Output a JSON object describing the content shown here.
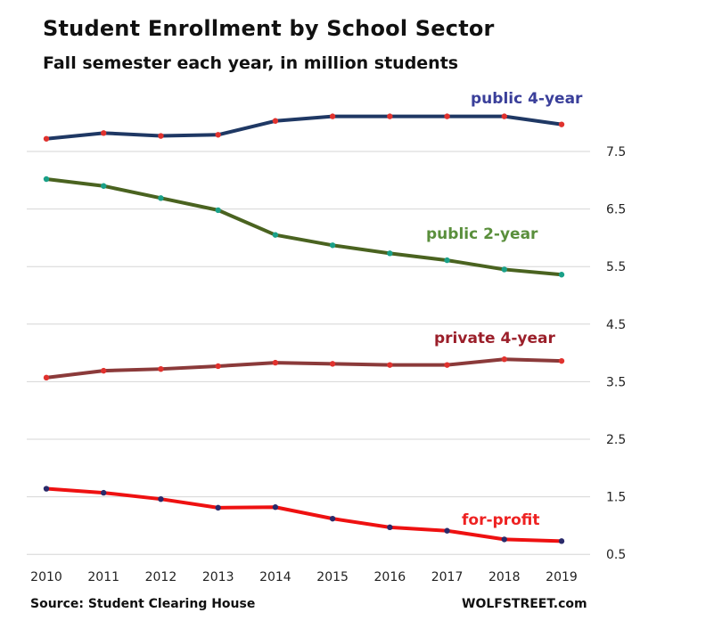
{
  "title": "Student Enrollment by School Sector",
  "subtitle": "Fall semester each year, in million students",
  "source": "Source: Student Clearing House",
  "brand": "WOLFSTREET.com",
  "chart_data": {
    "type": "line",
    "title": "Student Enrollment by School Sector",
    "subtitle": "Fall semester each year, in million students",
    "x": [
      "2010",
      "2011",
      "2012",
      "2013",
      "2014",
      "2015",
      "2016",
      "2017",
      "2018",
      "2019"
    ],
    "y_ticks": [
      "0.5",
      "1.5",
      "2.5",
      "3.5",
      "4.5",
      "5.5",
      "6.5",
      "7.5"
    ],
    "ylim": [
      0.5,
      8.4
    ],
    "grid": true,
    "y_axis_side": "right",
    "series": [
      {
        "name": "public 4-year",
        "color": "#1f3864",
        "label_color": "#3a3f9a",
        "marker_color": "#e0322e",
        "values": [
          7.72,
          7.82,
          7.77,
          7.79,
          8.03,
          8.11,
          8.11,
          8.11,
          8.11,
          7.97
        ]
      },
      {
        "name": "public 2-year",
        "color": "#4a6320",
        "label_color": "#5a8f3c",
        "marker_color": "#1aa088",
        "values": [
          7.02,
          6.9,
          6.69,
          6.48,
          6.05,
          5.87,
          5.73,
          5.61,
          5.45,
          5.36
        ]
      },
      {
        "name": "private 4-year",
        "color": "#8b3a3a",
        "label_color": "#9b1f2a",
        "marker_color": "#e0322e",
        "values": [
          3.57,
          3.69,
          3.72,
          3.77,
          3.83,
          3.81,
          3.79,
          3.79,
          3.89,
          3.86
        ]
      },
      {
        "name": "for-profit",
        "color": "#ee1111",
        "label_color": "#ee2222",
        "marker_color": "#2a2a6a",
        "values": [
          1.64,
          1.57,
          1.46,
          1.31,
          1.32,
          1.12,
          0.97,
          0.91,
          0.76,
          0.73
        ]
      }
    ]
  }
}
